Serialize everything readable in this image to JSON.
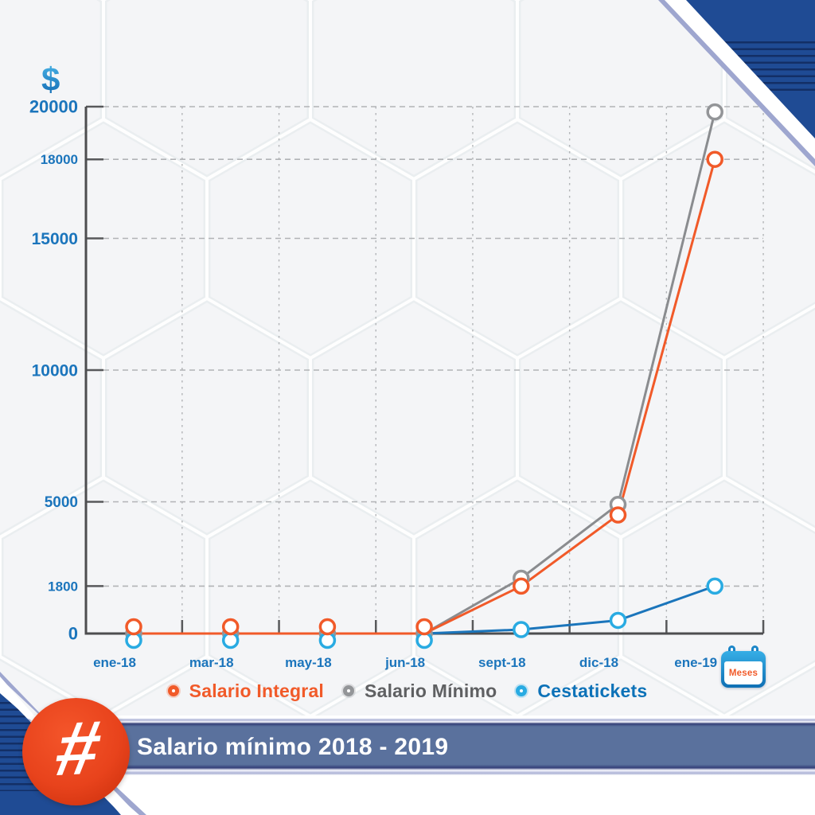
{
  "chart": {
    "y_axis_symbol": "$",
    "x_axis_icon_label": "Meses"
  },
  "legend": {
    "items": [
      {
        "label": "Salario Integral",
        "text_color": "#f15a29",
        "ring_color": "#f15a29"
      },
      {
        "label": "Salario Mínimo",
        "text_color": "#5f6062",
        "ring_color": "#939598"
      },
      {
        "label": "Cestatickets",
        "text_color": "#0d72b8",
        "ring_color": "#29abe2"
      }
    ]
  },
  "banner": {
    "title": "Salario mínimo 2018 - 2019",
    "badge_symbol": "#"
  },
  "chart_data": {
    "type": "line",
    "title": "Salario mínimo 2018 - 2019",
    "categories": [
      "ene-18",
      "mar-18",
      "may-18",
      "jun-18",
      "sept-18",
      "dic-18",
      "ene-19"
    ],
    "series": [
      {
        "name": "Salario Integral",
        "color": "#f15a29",
        "marker_color": "#f15a29",
        "values": [
          0,
          0,
          0,
          0,
          1800,
          4500,
          18000
        ]
      },
      {
        "name": "Salario Mínimo",
        "color": "#8a8c8f",
        "marker_color": "#939598",
        "values": [
          0,
          0,
          0,
          0,
          2100,
          4900,
          19800
        ]
      },
      {
        "name": "Cestatickets",
        "color": "#1b75bb",
        "marker_color": "#29abe2",
        "values": [
          0,
          0,
          0,
          0,
          150,
          500,
          1800
        ]
      }
    ],
    "y_ticks": [
      0,
      1800,
      5000,
      10000,
      15000,
      18000,
      20000
    ],
    "ylim": [
      0,
      20000
    ],
    "xlabel": "Meses",
    "ylabel": "$",
    "grid": true,
    "legend_position": "bottom",
    "axis_label_color": "#1b75bc"
  },
  "colors": {
    "corner_navy": "#1f4b94",
    "banner_bar": "#5a719d",
    "badge_orange": "#e8431c",
    "axis_labels": "#1b75bc"
  }
}
